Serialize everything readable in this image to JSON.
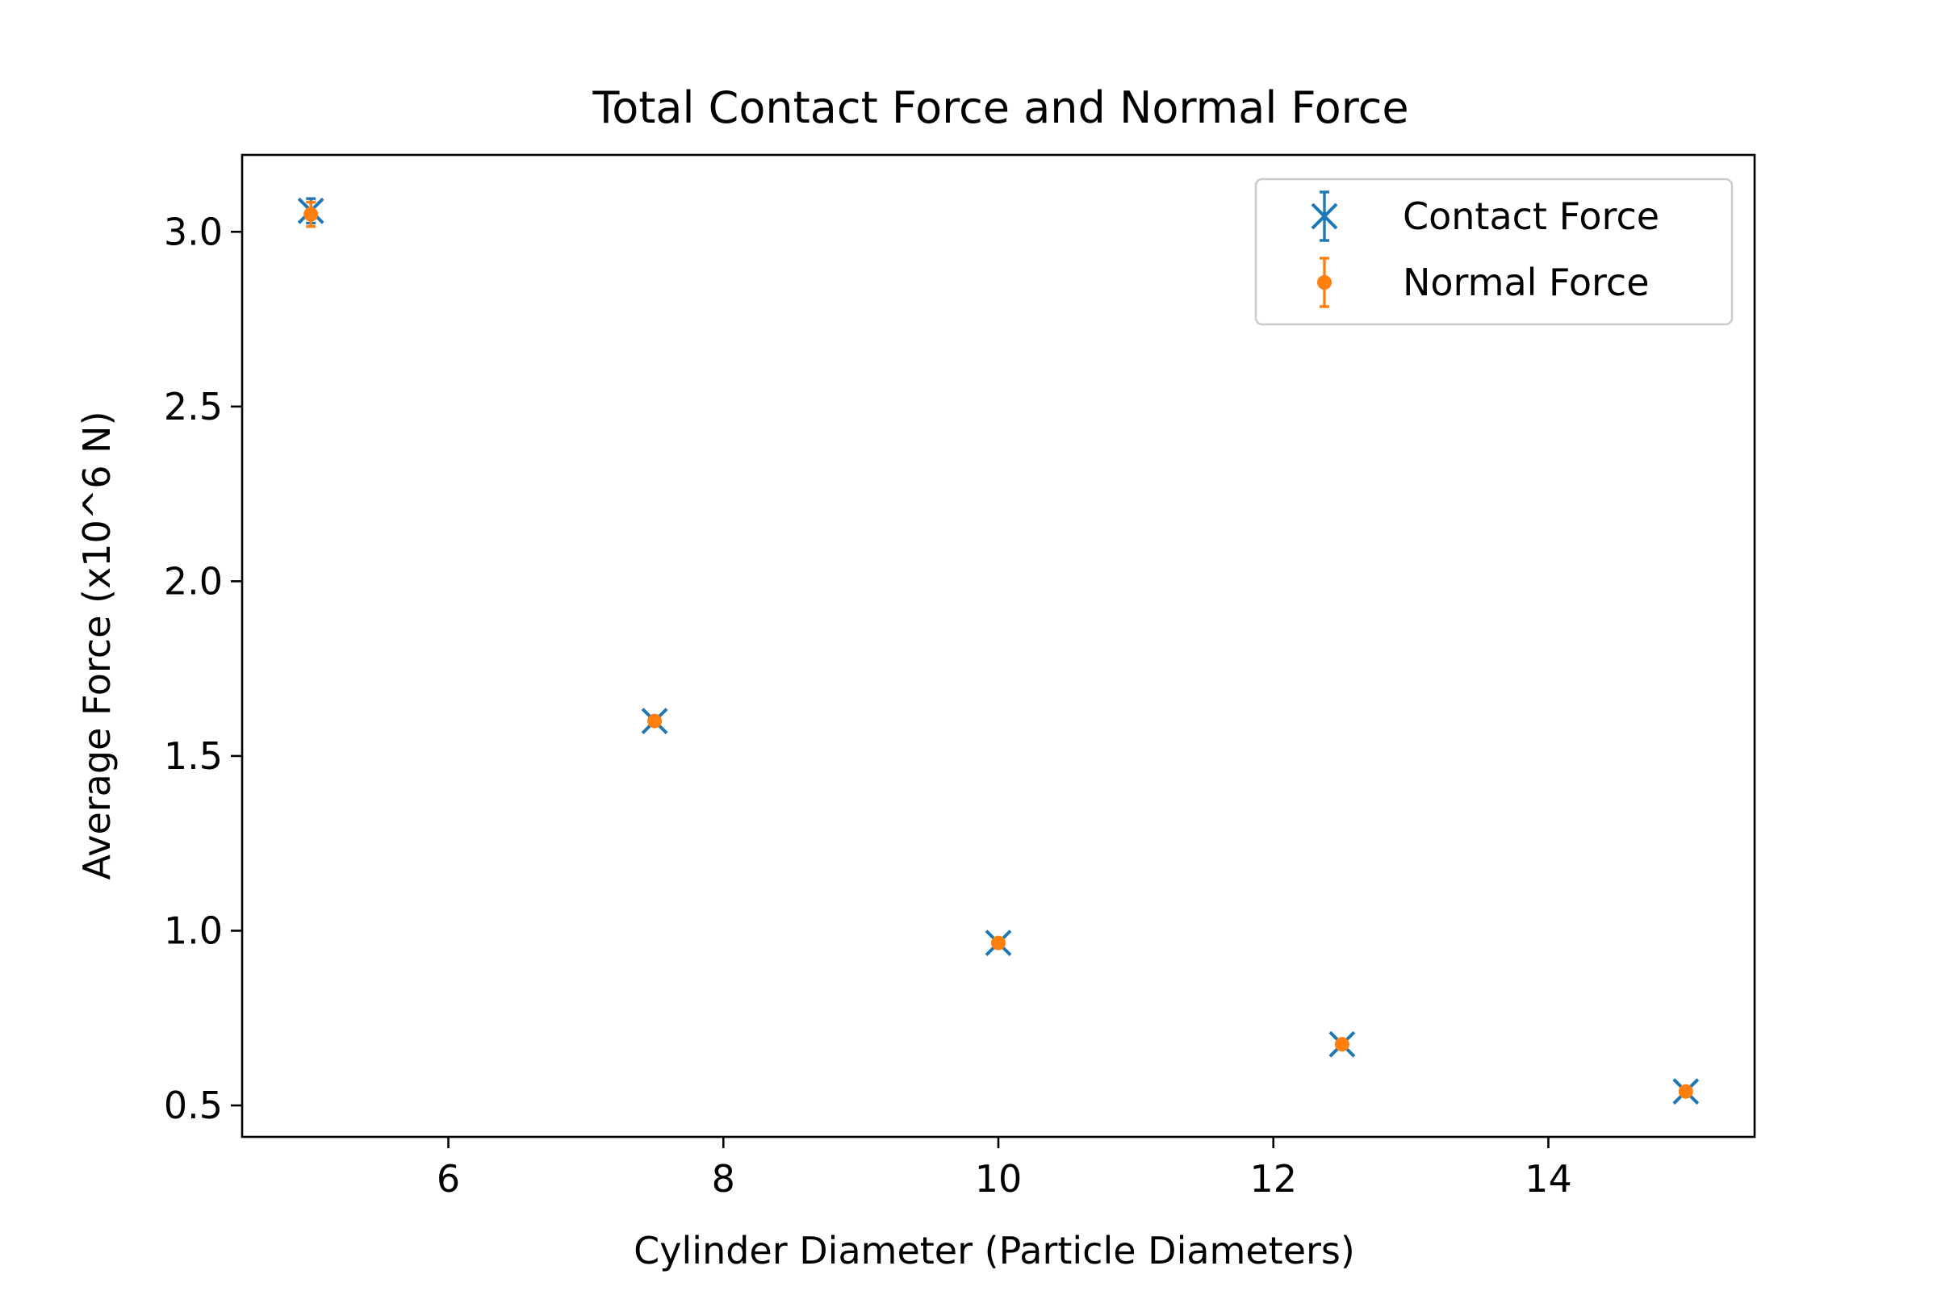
{
  "chart_data": {
    "type": "scatter",
    "title": "Total Contact Force and Normal Force",
    "xlabel": "Cylinder Diameter (Particle Diameters)",
    "ylabel": "Average Force (x10^6 N)",
    "xlim": [
      4.5,
      15.5
    ],
    "ylim": [
      0.41,
      3.22
    ],
    "xticks": [
      6,
      8,
      10,
      12,
      14
    ],
    "xtick_labels": [
      "6",
      "8",
      "10",
      "12",
      "14"
    ],
    "yticks": [
      0.5,
      1.0,
      1.5,
      2.0,
      2.5,
      3.0
    ],
    "ytick_labels": [
      "0.5",
      "1.0",
      "1.5",
      "2.0",
      "2.5",
      "3.0"
    ],
    "grid": false,
    "legend_position": "top-right",
    "series": [
      {
        "name": "Contact Force",
        "marker": "x",
        "color": "#1f77b4",
        "x": [
          5,
          7.5,
          10,
          12.5,
          15
        ],
        "y": [
          3.06,
          1.6,
          0.965,
          0.675,
          0.54
        ],
        "yerr": [
          0.035,
          0.01,
          0.01,
          0.01,
          0.01
        ]
      },
      {
        "name": "Normal Force",
        "marker": "o",
        "color": "#ff7f0e",
        "x": [
          5,
          7.5,
          10,
          12.5,
          15
        ],
        "y": [
          3.05,
          1.6,
          0.965,
          0.675,
          0.54
        ],
        "yerr": [
          0.035,
          0.01,
          0.01,
          0.01,
          0.01
        ]
      }
    ]
  }
}
